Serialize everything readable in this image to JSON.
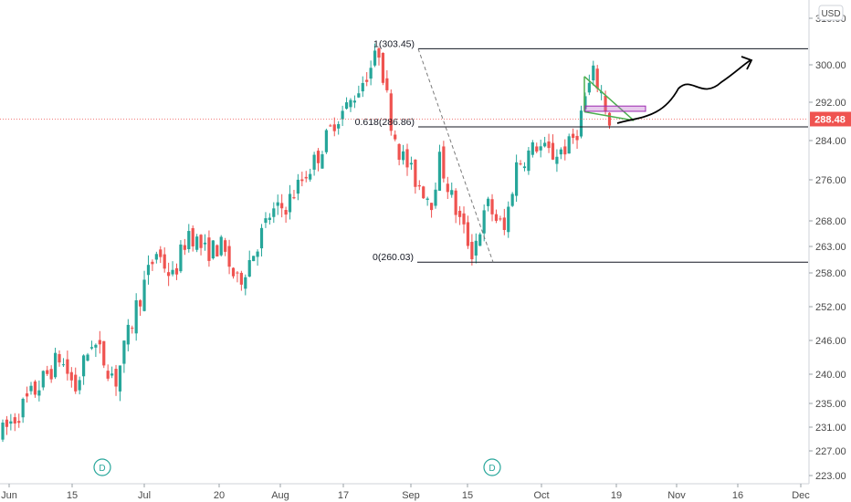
{
  "chart_data": {
    "type": "candlestick",
    "currency": "USD",
    "last_price": "288.48",
    "y_ticks": [
      "223.00",
      "227.00",
      "231.00",
      "235.00",
      "240.00",
      "246.00",
      "252.00",
      "258.00",
      "263.00",
      "268.00",
      "276.00",
      "284.00",
      "292.00",
      "300.00",
      "310.00"
    ],
    "x_ticks": [
      "Jun",
      "15",
      "Jul",
      "20",
      "Aug",
      "17",
      "Sep",
      "15",
      "Oct",
      "19",
      "Nov",
      "16",
      "Dec"
    ],
    "fib_levels": [
      {
        "label": "1(303.45)",
        "value": 303.45
      },
      {
        "label": "0.618(286.86)",
        "value": 286.86
      },
      {
        "label": "0(260.03)",
        "value": 260.03
      }
    ],
    "markers": [
      "D",
      "D"
    ],
    "ylim": [
      222.5,
      318
    ],
    "colors": {
      "up": "#26a69a",
      "down": "#ef5350",
      "line": "#131722",
      "price": "#ef5350",
      "triangle": "#4caf50",
      "box": "#9c27b0"
    }
  }
}
